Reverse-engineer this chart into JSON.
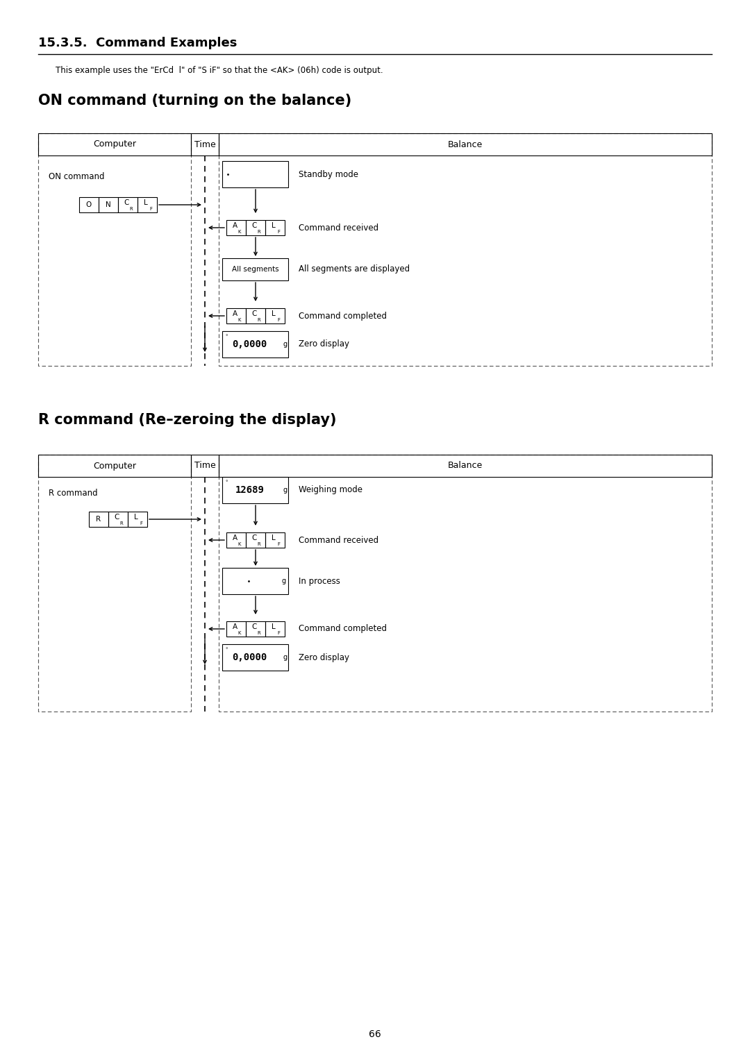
{
  "title_section": "15.3.5.  Command Examples",
  "subtitle": "This example uses the \"ErCd  l\" of \"S iF\" so that the <AK> (06h) code is output.",
  "on_command_title": "ON command (turning on the balance)",
  "r_command_title": "R command (Re–zeroing the display)",
  "page_number": "66",
  "bg_color": "#ffffff",
  "text_color": "#000000"
}
